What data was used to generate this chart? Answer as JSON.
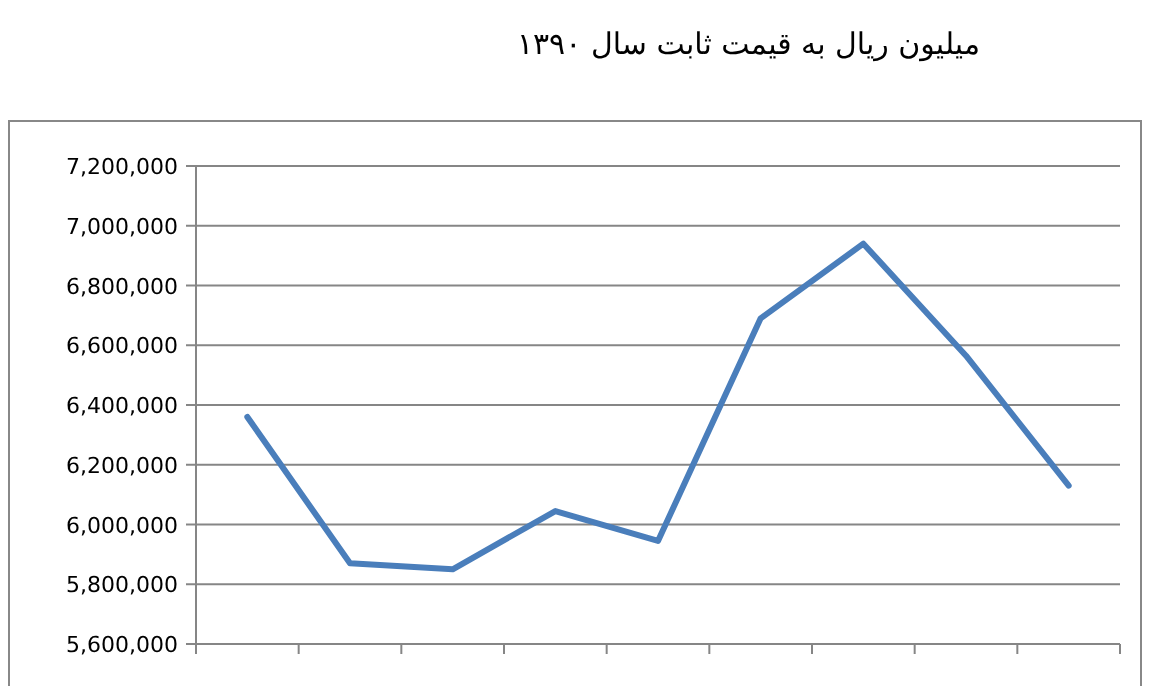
{
  "chart_data": {
    "type": "line",
    "title": "میلیون ریال به قیمت ثابت سال ۱۳۹۰",
    "categories": [
      null,
      null,
      null,
      null,
      null,
      null,
      null,
      null,
      null
    ],
    "series": [
      {
        "color": "#4a7ebb",
        "values": [
          6360000,
          5870000,
          5850000,
          6045000,
          5945000,
          6690000,
          6940000,
          6565000,
          6130000
        ]
      }
    ],
    "ylim": [
      5600000,
      7200000
    ],
    "yticks": [
      {
        "value": 5600000,
        "label": "5,600,000"
      },
      {
        "value": 5800000,
        "label": "5,800,000"
      },
      {
        "value": 6000000,
        "label": "6,000,000"
      },
      {
        "value": 6200000,
        "label": "6,200,000"
      },
      {
        "value": 6400000,
        "label": "6,400,000"
      },
      {
        "value": 6600000,
        "label": "6,600,000"
      },
      {
        "value": 6800000,
        "label": "6,800,000"
      },
      {
        "value": 7000000,
        "label": "7,000,000"
      },
      {
        "value": 7200000,
        "label": "7,200,000"
      }
    ],
    "grid": "y",
    "marker": "none",
    "line_style": "solid"
  }
}
